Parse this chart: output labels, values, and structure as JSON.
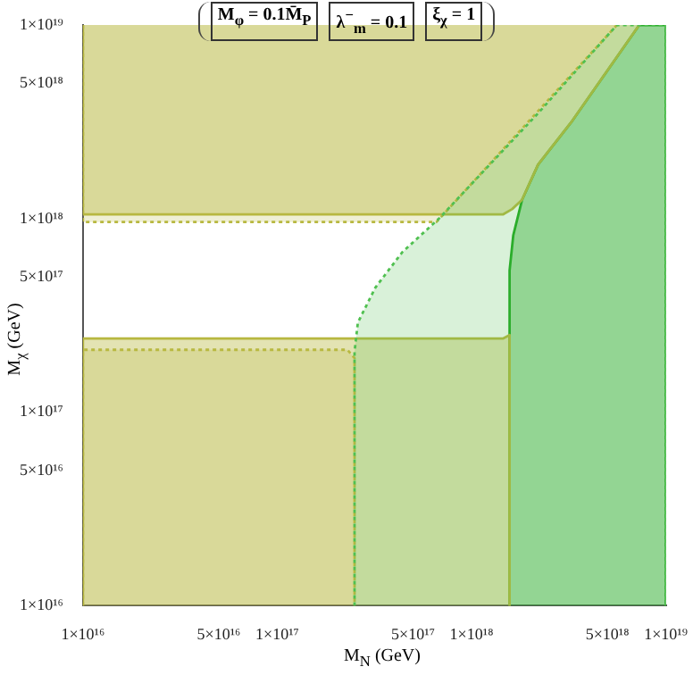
{
  "chart_data": {
    "type": "area",
    "annotations": [
      "M$_{φ}$ = 0.1M̄$_{P}$",
      "λ$^{−}$$_{m}$ = 0.1",
      "ξ$_{χ}$ = 1"
    ],
    "xlabel": "M$_{N}$ (GeV)",
    "ylabel": "M$_{χ}$ (GeV)",
    "log": "xy",
    "grid": false,
    "legend": false,
    "marker": "none",
    "xlim": [
      1e+16,
      1e+19
    ],
    "ylim": [
      1e+16,
      1e+19
    ],
    "xticks": [
      {
        "value": 1e+16,
        "label": "1×10¹⁶"
      },
      {
        "value": 5e+16,
        "label": "5×10¹⁶"
      },
      {
        "value": 1e+17,
        "label": "1×10¹⁷"
      },
      {
        "value": 5e+17,
        "label": "5×10¹⁷"
      },
      {
        "value": 1e+18,
        "label": "1×10¹⁸"
      },
      {
        "value": 5e+18,
        "label": "5×10¹⁸"
      },
      {
        "value": 1e+19,
        "label": "1×10¹⁹"
      }
    ],
    "yticks": [
      {
        "value": 1e+16,
        "label": "1×10¹⁶"
      },
      {
        "value": 5e+16,
        "label": "5×10¹⁶"
      },
      {
        "value": 1e+17,
        "label": "1×10¹⁷"
      },
      {
        "value": 5e+17,
        "label": "5×10¹⁷"
      },
      {
        "value": 1e+18,
        "label": "1×10¹⁸"
      },
      {
        "value": 5e+18,
        "label": "5×10¹⁸"
      },
      {
        "value": 1e+19,
        "label": "1×10¹⁹"
      }
    ],
    "series": [
      {
        "color": "#50c050",
        "line_style": "dotted",
        "x": [
          2.5e+17,
          2.5e+17,
          2.6e+17,
          3.2e+17,
          4.4e+17,
          6.8e+17,
          2.2e+18,
          5.6e+18,
          1e+19,
          1e+19
        ],
        "values": [
          1e+16,
          2.05e+17,
          2.9e+17,
          4.4e+17,
          6.7e+17,
          1e+18,
          3.5e+18,
          1e+19,
          1e+19,
          1e+16
        ]
      },
      {
        "color": "#b8b840",
        "line_style": "dotted",
        "x": [
          1e+16,
          1e+16,
          2.3e+17,
          2.5e+17,
          2.5e+17
        ],
        "values": [
          1e+16,
          2.1e+17,
          2.1e+17,
          1.9e+17,
          1e+16
        ]
      },
      {
        "color": "#b8b840",
        "line_style": "dotted",
        "x": [
          1e+16,
          1e+16,
          6.6e+17,
          5.6e+18
        ],
        "values": [
          1e+19,
          9.6e+17,
          9.6e+17,
          1e+19
        ]
      },
      {
        "color": "#b8b840",
        "line_style": "solid",
        "x": [
          1e+16,
          1e+16,
          1.45e+18,
          1.57e+18,
          1.57e+18
        ],
        "values": [
          1e+16,
          2.4e+17,
          2.4e+17,
          2.5e+17,
          1e+16
        ]
      },
      {
        "color": "#b8b840",
        "line_style": "solid",
        "x": [
          1e+16,
          1e+16,
          1.45e+18,
          1.62e+18,
          1.82e+18,
          2.2e+18,
          3.3e+18,
          7.3e+18
        ],
        "values": [
          1e+19,
          1.05e+18,
          1.05e+18,
          1.12e+18,
          1.25e+18,
          1.9e+18,
          3.2e+18,
          1e+19
        ]
      },
      {
        "color": "#20a820",
        "line_style": "solid",
        "x": [
          1.57e+18,
          1.57e+18,
          1.64e+18,
          1.82e+18,
          2.2e+18,
          3.3e+18,
          7.3e+18,
          1e+19,
          1e+19
        ],
        "values": [
          1e+16,
          5.4e+17,
          8.2e+17,
          1.25e+18,
          1.9e+18,
          3.2e+18,
          1e+19,
          1e+19,
          1e+16
        ]
      }
    ]
  }
}
